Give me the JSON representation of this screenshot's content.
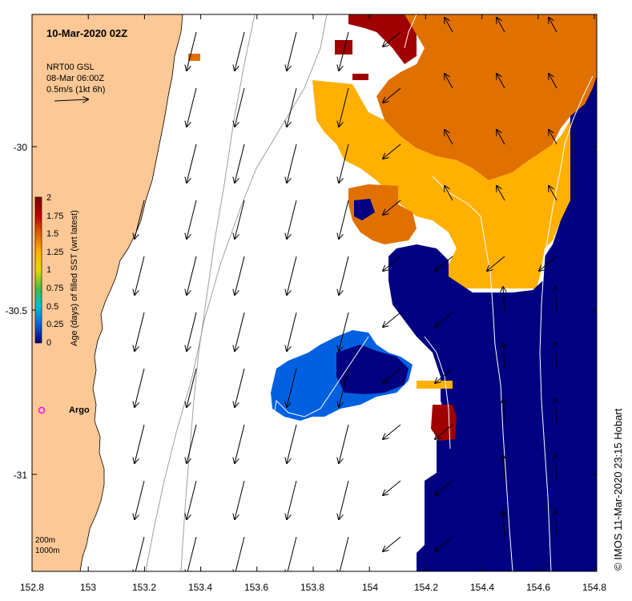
{
  "title": "10-Mar-2020 02Z",
  "velocity_legend": {
    "line1": "NRT00 GSL",
    "line2": "08-Mar 06:00Z",
    "line3": "0.5m/s (1kt 6h)"
  },
  "colorbar": {
    "label": "Age (days) of filled SST (wrt latest)",
    "ticks": [
      "2",
      "1.75",
      "1.5",
      "1.25",
      "1",
      "0.75",
      "0.5",
      "0.25",
      "0"
    ],
    "colors": [
      "#800000",
      "#c00000",
      "#e06000",
      "#ffb000",
      "#e8d800",
      "#40c040",
      "#00c0e0",
      "#0060e0",
      "#000080"
    ]
  },
  "x_axis": {
    "ticks": [
      "152.8",
      "153",
      "153.2",
      "153.4",
      "153.6",
      "153.8",
      "154",
      "154.2",
      "154.4",
      "154.6",
      "154.8"
    ]
  },
  "y_axis": {
    "ticks": [
      "-30",
      "-30.5",
      "-31"
    ]
  },
  "argo_label": "Argo",
  "isobath_legend": {
    "line1": "200m",
    "line2": "1000m"
  },
  "credit": "© IMOS 11-Mar-2020 23:15 Hobart",
  "colors": {
    "land": "#fcc896",
    "age_0": "#000080",
    "age_025": "#0060e0",
    "age_15": "#ffb000",
    "age_175": "#e07000",
    "age_2": "#a00000",
    "argo": "#ff00ff"
  }
}
